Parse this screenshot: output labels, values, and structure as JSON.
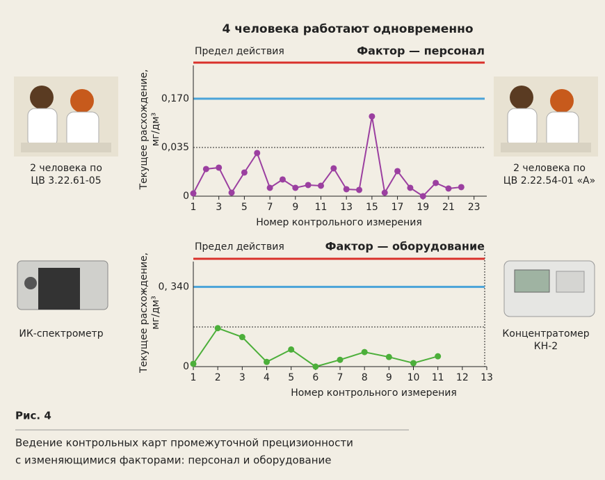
{
  "header": {
    "title": "4 человека работают одновременно"
  },
  "images": [
    {
      "caption": [
        "2 человека по",
        "ЦВ 3.22.61-05"
      ]
    },
    {
      "caption": [
        "2 человека по",
        "ЦВ 2.22.54-01 «А»"
      ]
    },
    {
      "caption": [
        "ИК-спектрометр"
      ]
    },
    {
      "caption": [
        "Концентратомер",
        "КН-2"
      ]
    }
  ],
  "chart_data": [
    {
      "type": "line",
      "limit_label": "Предел действия",
      "subtitle": "Фактор — персонал",
      "ylabel": [
        "Текущее расхождение,",
        "мг/дм³"
      ],
      "xlabel": "Номер контрольного измерения",
      "x": [
        1,
        2,
        3,
        4,
        5,
        6,
        7,
        8,
        9,
        10,
        11,
        12,
        13,
        14,
        15,
        16,
        17,
        18,
        19,
        20,
        21,
        22
      ],
      "values": [
        0.002,
        0.0195,
        0.0205,
        0.0025,
        0.017,
        0.031,
        0.006,
        0.012,
        0.006,
        0.008,
        0.0075,
        0.02,
        0.005,
        0.0045,
        0.121,
        0.0025,
        0.018,
        0.006,
        0,
        0.0095,
        0.0055,
        0.0065
      ],
      "color": "#9b3fa0",
      "xlim": [
        1,
        24
      ],
      "xticks": [
        1,
        3,
        5,
        7,
        9,
        11,
        13,
        15,
        17,
        19,
        21,
        23
      ],
      "ylim": [
        0,
        0.27
      ],
      "yticks": [
        0,
        {
          "value": 0.035,
          "label": "0,035"
        },
        {
          "value": 0.17,
          "label": "0,170"
        }
      ]
    },
    {
      "type": "line",
      "limit_label": "Предел действия",
      "subtitle": "Фактор — оборудование",
      "ylabel": [
        "Текущее расхождение,",
        "мг/дм³"
      ],
      "xlabel": "Номер контрольного измерения",
      "x": [
        1,
        2,
        3,
        4,
        5,
        6,
        7,
        8,
        9,
        10,
        11
      ],
      "values": [
        0.012,
        0.164,
        0.126,
        0.02,
        0.073,
        0,
        0.029,
        0.062,
        0.041,
        0.015,
        0.044
      ],
      "color": "#4caf3a",
      "xlim": [
        1,
        13
      ],
      "xticks": [
        1,
        2,
        3,
        4,
        5,
        6,
        7,
        8,
        9,
        10,
        11,
        12,
        13
      ],
      "ylim": [
        0,
        0.46
      ],
      "yticks": [
        0,
        {
          "value": 0.34,
          "label": "0, 340"
        }
      ]
    }
  ],
  "caption": {
    "label": "Рис. 4",
    "lines": [
      "Ведение контрольных карт промежуточной прецизионности",
      "с изменяющимися факторами: персонал и оборудование"
    ]
  }
}
